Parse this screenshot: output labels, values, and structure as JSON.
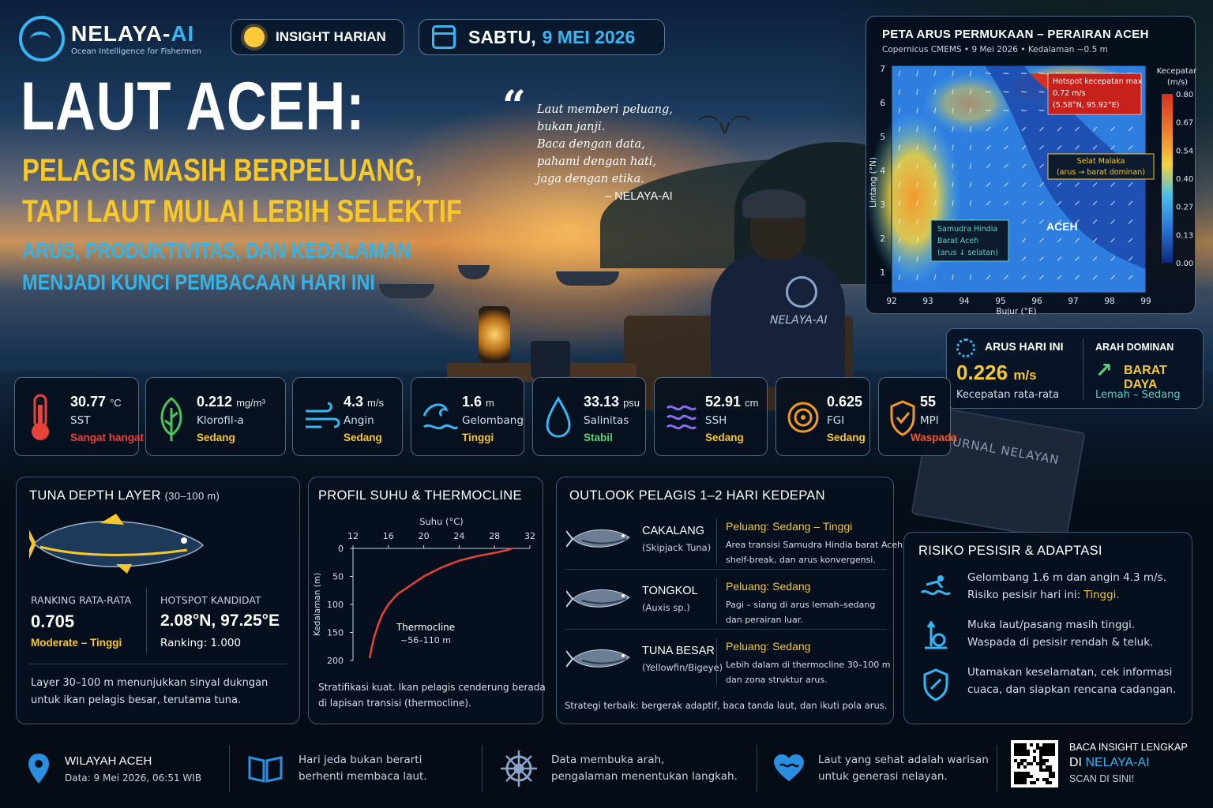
{
  "header": {
    "brand_name": "NELAYA-",
    "brand_name_ai": "AI",
    "brand_tagline": "Ocean Intelligence for Fishermen",
    "insight_label": "INSIGHT HARIAN",
    "date_day": "SABTU,",
    "date_value": "9 MEI 2026"
  },
  "headline": {
    "title": "LAUT ACEH:",
    "sub1": "PELAGIS MASIH BERPELUANG,",
    "sub2": "TAPI LAUT MULAI LEBIH SELEKTIF",
    "sub3": "ARUS, PRODUKTIVITAS, DAN KEDALAMAN",
    "sub4": "MENJADI KUNCI PEMBACAAN HARI INI"
  },
  "quote": {
    "lines": [
      "Laut memberi peluang,",
      "bukan janji.",
      "Baca dengan data,",
      "pahami dengan hati,",
      "jaga dengan etika."
    ],
    "author": "– NELAYA-AI"
  },
  "scene": {
    "shirt_logo": "NELAYA-AI",
    "book_title": "JURNAL NELAYAN"
  },
  "map": {
    "title": "PETA ARUS PERMUKAAN – PERAIRAN ACEH",
    "subtitle": "Copernicus CMEMS   •   9 Mei 2026   •   Kedalaman ~0.5 m",
    "xlabel": "Bujur (°E)",
    "ylabel": "Lintang (°N)",
    "x_ticks": [
      "92",
      "93",
      "94",
      "95",
      "96",
      "97",
      "98",
      "99"
    ],
    "y_ticks": [
      "7",
      "6",
      "5",
      "4",
      "3",
      "2",
      "1"
    ],
    "colorbar_title": "Kecepatan",
    "colorbar_unit": "(m/s)",
    "colorbar_ticks": [
      "0.80",
      "0.67",
      "0.54",
      "0.40",
      "0.27",
      "0.13",
      "0.00"
    ],
    "hotspot_line1": "Hotspot kecepatan max",
    "hotspot_line2": "0.72 m/s",
    "hotspot_line3": "(5.58°N, 95.92°E)",
    "malaka_line1": "Selat Malaka",
    "malaka_line2": "(arus → barat dominan)",
    "hindia_line1": "Samudra Hindia",
    "hindia_line2": "Barat Aceh",
    "hindia_line3": "(arus ↓ selatan)",
    "land_label": "ACEH",
    "colors": {
      "high": "#d7301f",
      "mid": "#f5d33b",
      "low": "#1a5bc4",
      "land": "#1d4fb0"
    }
  },
  "arus": {
    "title": "ARUS HARI INI",
    "value": "0.226",
    "unit": "m/s",
    "label": "Kecepatan rata-rata",
    "dominant_title": "ARAH DOMINAN",
    "arrow": "↗",
    "direction": "BARAT DAYA",
    "strength": "Lemah – Sedang"
  },
  "metrics": [
    {
      "value": "30.77",
      "unit": "°C",
      "name": "SST",
      "status": "Sangat hangat",
      "status_color": "#e8423a",
      "icon": "thermometer-icon",
      "color": "#e8423a"
    },
    {
      "value": "0.212",
      "unit": "mg/m³",
      "name": "Klorofil-a",
      "status": "Sedang",
      "status_color": "#f6c829",
      "icon": "leaf-icon",
      "color": "#4cc45a"
    },
    {
      "value": "4.3",
      "unit": "m/s",
      "name": "Angin",
      "status": "Sedang",
      "status_color": "#f6c829",
      "icon": "wind-icon",
      "color": "#36b6f2"
    },
    {
      "value": "1.6",
      "unit": "m",
      "name": "Gelombang",
      "status": "Tinggi",
      "status_color": "#f6c829",
      "icon": "wave-icon",
      "color": "#36b6f2"
    },
    {
      "value": "33.13",
      "unit": "psu",
      "name": "Salinitas",
      "status": "Stabil",
      "status_color": "#5ad07a",
      "icon": "droplet-icon",
      "color": "#36b6f2"
    },
    {
      "value": "52.91",
      "unit": "cm",
      "name": "SSH",
      "status": "Sedang",
      "status_color": "#f6c829",
      "icon": "sea-level-icon",
      "color": "#8a6cf0"
    },
    {
      "value": "0.625",
      "unit": "",
      "name": "FGI",
      "status": "Sedang",
      "status_color": "#f6c829",
      "icon": "target-icon",
      "color": "#f39a1e"
    },
    {
      "value": "55",
      "unit": "",
      "name": "MPI",
      "status": "Waspada",
      "status_color": "#ef5a2a",
      "icon": "shield-icon",
      "color": "#f39a1e"
    }
  ],
  "tuna_panel": {
    "title": "TUNA DEPTH LAYER",
    "title_range": "(30–100 m)",
    "rank_title": "RANKING RATA-RATA",
    "rank_value": "0.705",
    "rank_label": "Moderate – Tinggi",
    "hotspot_title": "HOTSPOT KANDIDAT",
    "hotspot_value": "2.08°N, 97.25°E",
    "hotspot_rank": "Ranking: 1.000",
    "desc1": "Layer 30–100 m menunjukkan sinyal dukngan",
    "desc2": "untuk ikan pelagis besar, terutama tuna."
  },
  "thermo_panel": {
    "title": "PROFIL SUHU & THERMOCLINE",
    "chart_data": {
      "type": "line",
      "title": "",
      "xlabel": "Suhu (°C)",
      "ylabel": "Kedalaman (m)",
      "xlim": [
        12,
        32
      ],
      "ylim": [
        200,
        0
      ],
      "x_ticks": [
        "12",
        "16",
        "20",
        "24",
        "28",
        "32"
      ],
      "y_ticks": [
        "0",
        "50",
        "100",
        "150",
        "200"
      ],
      "series": [
        {
          "x": [
            30.0,
            29.5,
            28.0,
            26.0,
            24.0,
            22.0,
            20.0,
            18.5,
            17.0,
            16.0,
            15.3,
            14.8,
            14.4,
            14.1,
            13.9
          ],
          "y": [
            0,
            3,
            8,
            14,
            22,
            34,
            50,
            66,
            82,
            100,
            118,
            138,
            158,
            178,
            196
          ]
        }
      ],
      "annotation1": "Thermocline",
      "annotation2": "~56–110 m",
      "grid": false
    },
    "desc1": "Stratifikasi kuat. Ikan pelagis cenderung berada",
    "desc2": "di lapisan transisi (thermocline)."
  },
  "outlook_panel": {
    "title": "OUTLOOK PELAGIS 1–2 HARI KEDEPAN",
    "items": [
      {
        "name": "CAKALANG",
        "latin": "(Skipjack Tuna)",
        "chance": "Peluang: Sedang – Tinggi",
        "desc1": "Area transisi Samudra Hindia barat Aceh,",
        "desc2": "shelf-break, dan arus konvergensi.",
        "icon": "skipjack-fish-icon"
      },
      {
        "name": "TONGKOL",
        "latin": "(Auxis sp.)",
        "chance": "Peluang: Sedang",
        "desc1": "Pagi – siang di arus lemah–sedang",
        "desc2": "dan perairan luar.",
        "icon": "tongkol-fish-icon"
      },
      {
        "name": "TUNA BESAR",
        "latin": "(Yellowfin/Bigeye)",
        "chance": "Peluang: Sedang",
        "desc1": "Lebih dalam di thermocline 30–100 m",
        "desc2": "dan zona struktur arus.",
        "icon": "tuna-fish-icon"
      }
    ],
    "strategy": "Strategi terbaik: bergerak adaptif, baca tanda laut, dan ikuti pola arus."
  },
  "risk_panel": {
    "title": "RISIKO PESISIR & ADAPTASI",
    "items": [
      {
        "l1": "Gelombang 1.6 m dan angin 4.3 m/s.",
        "l2a": "Risiko pesisir hari ini: ",
        "l2b": "Tinggi.",
        "icon": "swimmer-wave-icon"
      },
      {
        "l1": "Muka laut/pasang masih tinggi.",
        "l2a": "Waspada di pesisir rendah & teluk.",
        "l2b": "",
        "icon": "tide-gauge-icon"
      },
      {
        "l1": "Utamakan keselamatan, cek informasi",
        "l2a": "cuaca, dan siapkan rencana cadangan.",
        "l2b": "",
        "icon": "shield-check-icon"
      }
    ]
  },
  "footer": {
    "region_title": "WILAYAH ACEH",
    "region_date": "Data: 9 Mei 2026, 06:51 WIB",
    "msg1a": "Hari jeda bukan berarti",
    "msg1b": "berhenti membaca laut.",
    "msg2a": "Data membuka arah,",
    "msg2b": "pengalaman menentukan langkah.",
    "msg3a": "Laut yang sehat adalah warisan",
    "msg3b": "untuk generasi nelayan.",
    "cta1": "BACA INSIGHT LENGKAP",
    "cta2a": "DI ",
    "cta2b": "NELAYA-AI",
    "cta3": "SCAN DI SINI!"
  }
}
